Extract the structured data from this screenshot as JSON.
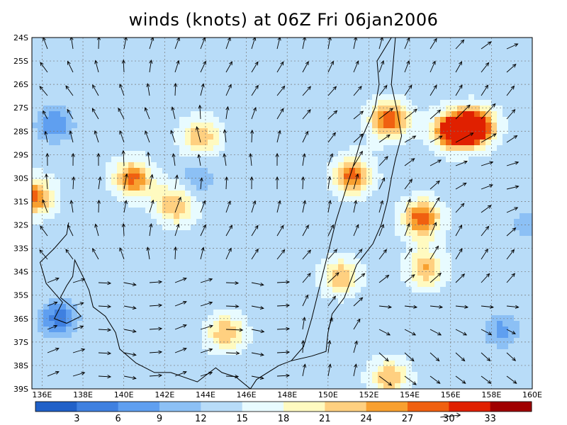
{
  "title": "winds (knots) at 06Z Fri 06jan2006",
  "lat_labels": [
    "24S",
    "25S",
    "26S",
    "27S",
    "28S",
    "29S",
    "30S",
    "31S",
    "32S",
    "33S",
    "34S",
    "35S",
    "36S",
    "37S",
    "38S",
    "39S"
  ],
  "lon_labels": [
    "136E",
    "138E",
    "140E",
    "142E",
    "144E",
    "146E",
    "148E",
    "150E",
    "152E",
    "154E",
    "156E",
    "158E",
    "160E"
  ],
  "colorbar": {
    "ticks": [
      "3",
      "6",
      "9",
      "12",
      "15",
      "18",
      "21",
      "24",
      "27",
      "30",
      "33"
    ],
    "colors": [
      "#2060c8",
      "#3f80e0",
      "#5f9ff0",
      "#8cc0f5",
      "#b8dcf8",
      "#e8fbff",
      "#fffac0",
      "#ffd080",
      "#f8a030",
      "#f06010",
      "#e02000",
      "#a00000"
    ],
    "reference_arrow_label": "30"
  },
  "chart_data": {
    "type": "heatmap",
    "title": "winds (knots) at 06Z Fri 06jan2006",
    "lon_range": [
      135.5,
      160
    ],
    "lat_range": [
      -39,
      -24
    ],
    "levels": [
      3,
      6,
      9,
      12,
      15,
      18,
      21,
      24,
      27,
      30,
      33
    ],
    "hotspots": [
      {
        "lon": 157.3,
        "lat": -27.8,
        "speed": 33
      },
      {
        "lon": 156.0,
        "lat": -28.0,
        "speed": 30
      },
      {
        "lon": 153.0,
        "lat": -27.5,
        "speed": 30
      },
      {
        "lon": 151.2,
        "lat": -29.9,
        "speed": 29
      },
      {
        "lon": 154.6,
        "lat": -31.7,
        "speed": 30
      },
      {
        "lon": 135.6,
        "lat": -30.8,
        "speed": 29
      },
      {
        "lon": 140.4,
        "lat": -30.0,
        "speed": 28
      },
      {
        "lon": 142.5,
        "lat": -31.2,
        "speed": 24
      },
      {
        "lon": 143.8,
        "lat": -28.2,
        "speed": 24
      },
      {
        "lon": 150.6,
        "lat": -34.2,
        "speed": 24
      },
      {
        "lon": 145.0,
        "lat": -36.6,
        "speed": 24
      },
      {
        "lon": 154.8,
        "lat": -33.9,
        "speed": 24
      },
      {
        "lon": 153.0,
        "lat": -38.5,
        "speed": 24
      },
      {
        "lon": 136.8,
        "lat": -36.0,
        "speed": 4
      },
      {
        "lon": 136.6,
        "lat": -27.7,
        "speed": 6
      },
      {
        "lon": 143.6,
        "lat": -30.0,
        "speed": 9
      },
      {
        "lon": 158.5,
        "lat": -36.5,
        "speed": 8
      },
      {
        "lon": 159.8,
        "lat": -32.0,
        "speed": 10
      }
    ]
  }
}
